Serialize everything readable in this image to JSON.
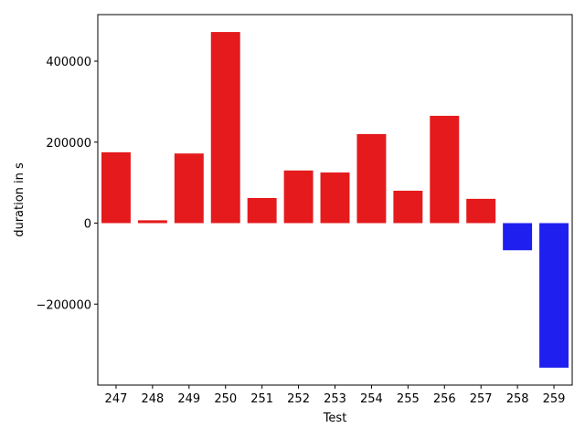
{
  "chart_data": {
    "type": "bar",
    "title": "",
    "xlabel": "Test",
    "ylabel": "duration in s",
    "categories": [
      "247",
      "248",
      "249",
      "250",
      "251",
      "252",
      "253",
      "254",
      "255",
      "256",
      "257",
      "258",
      "259"
    ],
    "values": [
      175000,
      7000,
      172000,
      472000,
      62000,
      130000,
      125000,
      220000,
      80000,
      265000,
      60000,
      -67000,
      -357000
    ],
    "ylim": [
      -400000,
      515000
    ],
    "yticks": [
      -200000,
      0,
      200000,
      400000
    ],
    "ytick_labels": [
      "−200000",
      "0",
      "200000",
      "400000"
    ],
    "grid": false,
    "colors": {
      "positive": "#e41a1c",
      "negative": "#1f1ff0"
    }
  }
}
